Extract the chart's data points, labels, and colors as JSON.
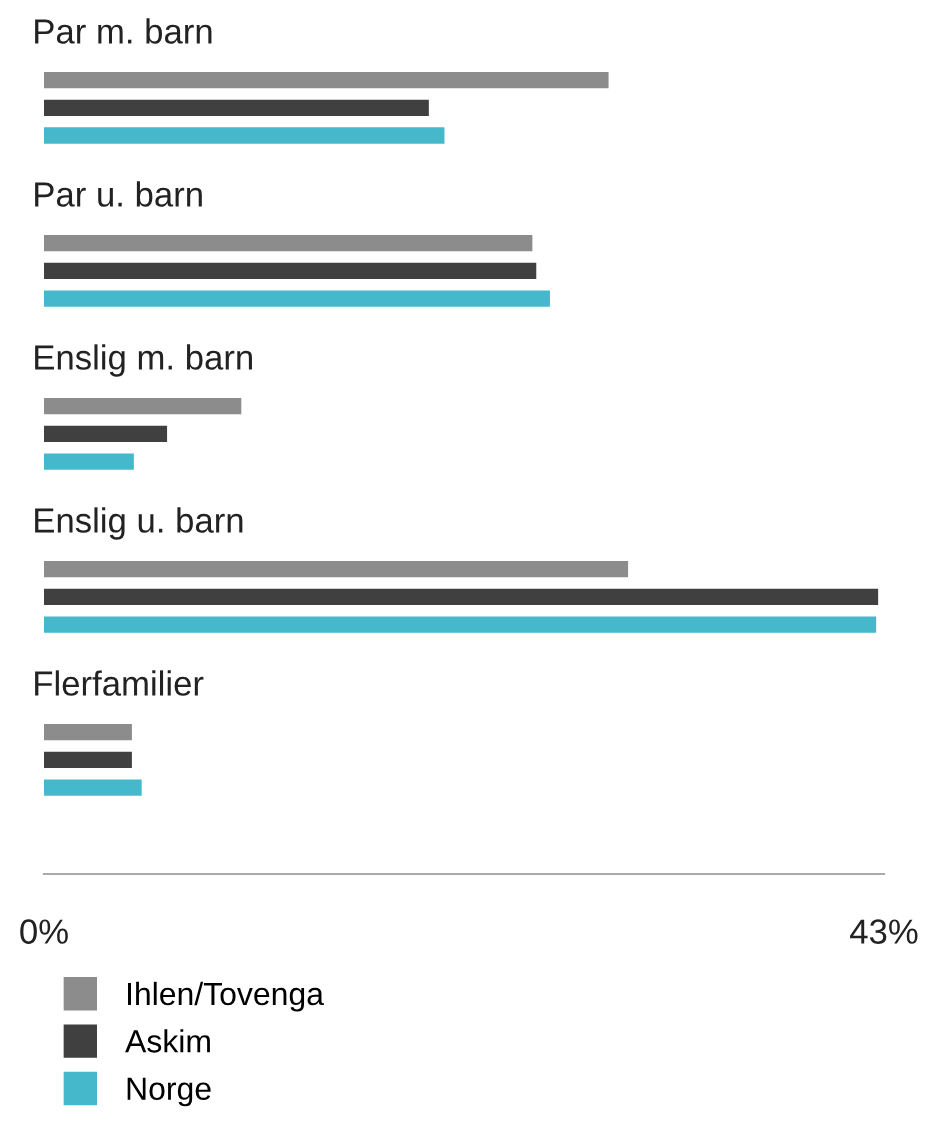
{
  "chart_data": {
    "type": "bar",
    "orientation": "horizontal",
    "categories": [
      "Par m. barn",
      "Par u. barn",
      "Enslig m. barn",
      "Enslig u. barn",
      "Flerfamilier"
    ],
    "series": [
      {
        "name": "Ihlen/Tovenga",
        "color": "#8c8c8c",
        "values": [
          28.9,
          25.0,
          10.1,
          29.9,
          4.5
        ]
      },
      {
        "name": "Askim",
        "color": "#404040",
        "values": [
          19.7,
          25.2,
          6.3,
          42.7,
          4.5
        ]
      },
      {
        "name": "Norge",
        "color": "#45b8cc",
        "values": [
          20.5,
          25.9,
          4.6,
          42.6,
          5.0
        ]
      }
    ],
    "xlim": [
      0,
      43
    ],
    "xticks": [
      {
        "value": 0,
        "label": "0%"
      },
      {
        "value": 43,
        "label": "43%"
      }
    ],
    "grid": false,
    "legend": "bottom"
  }
}
